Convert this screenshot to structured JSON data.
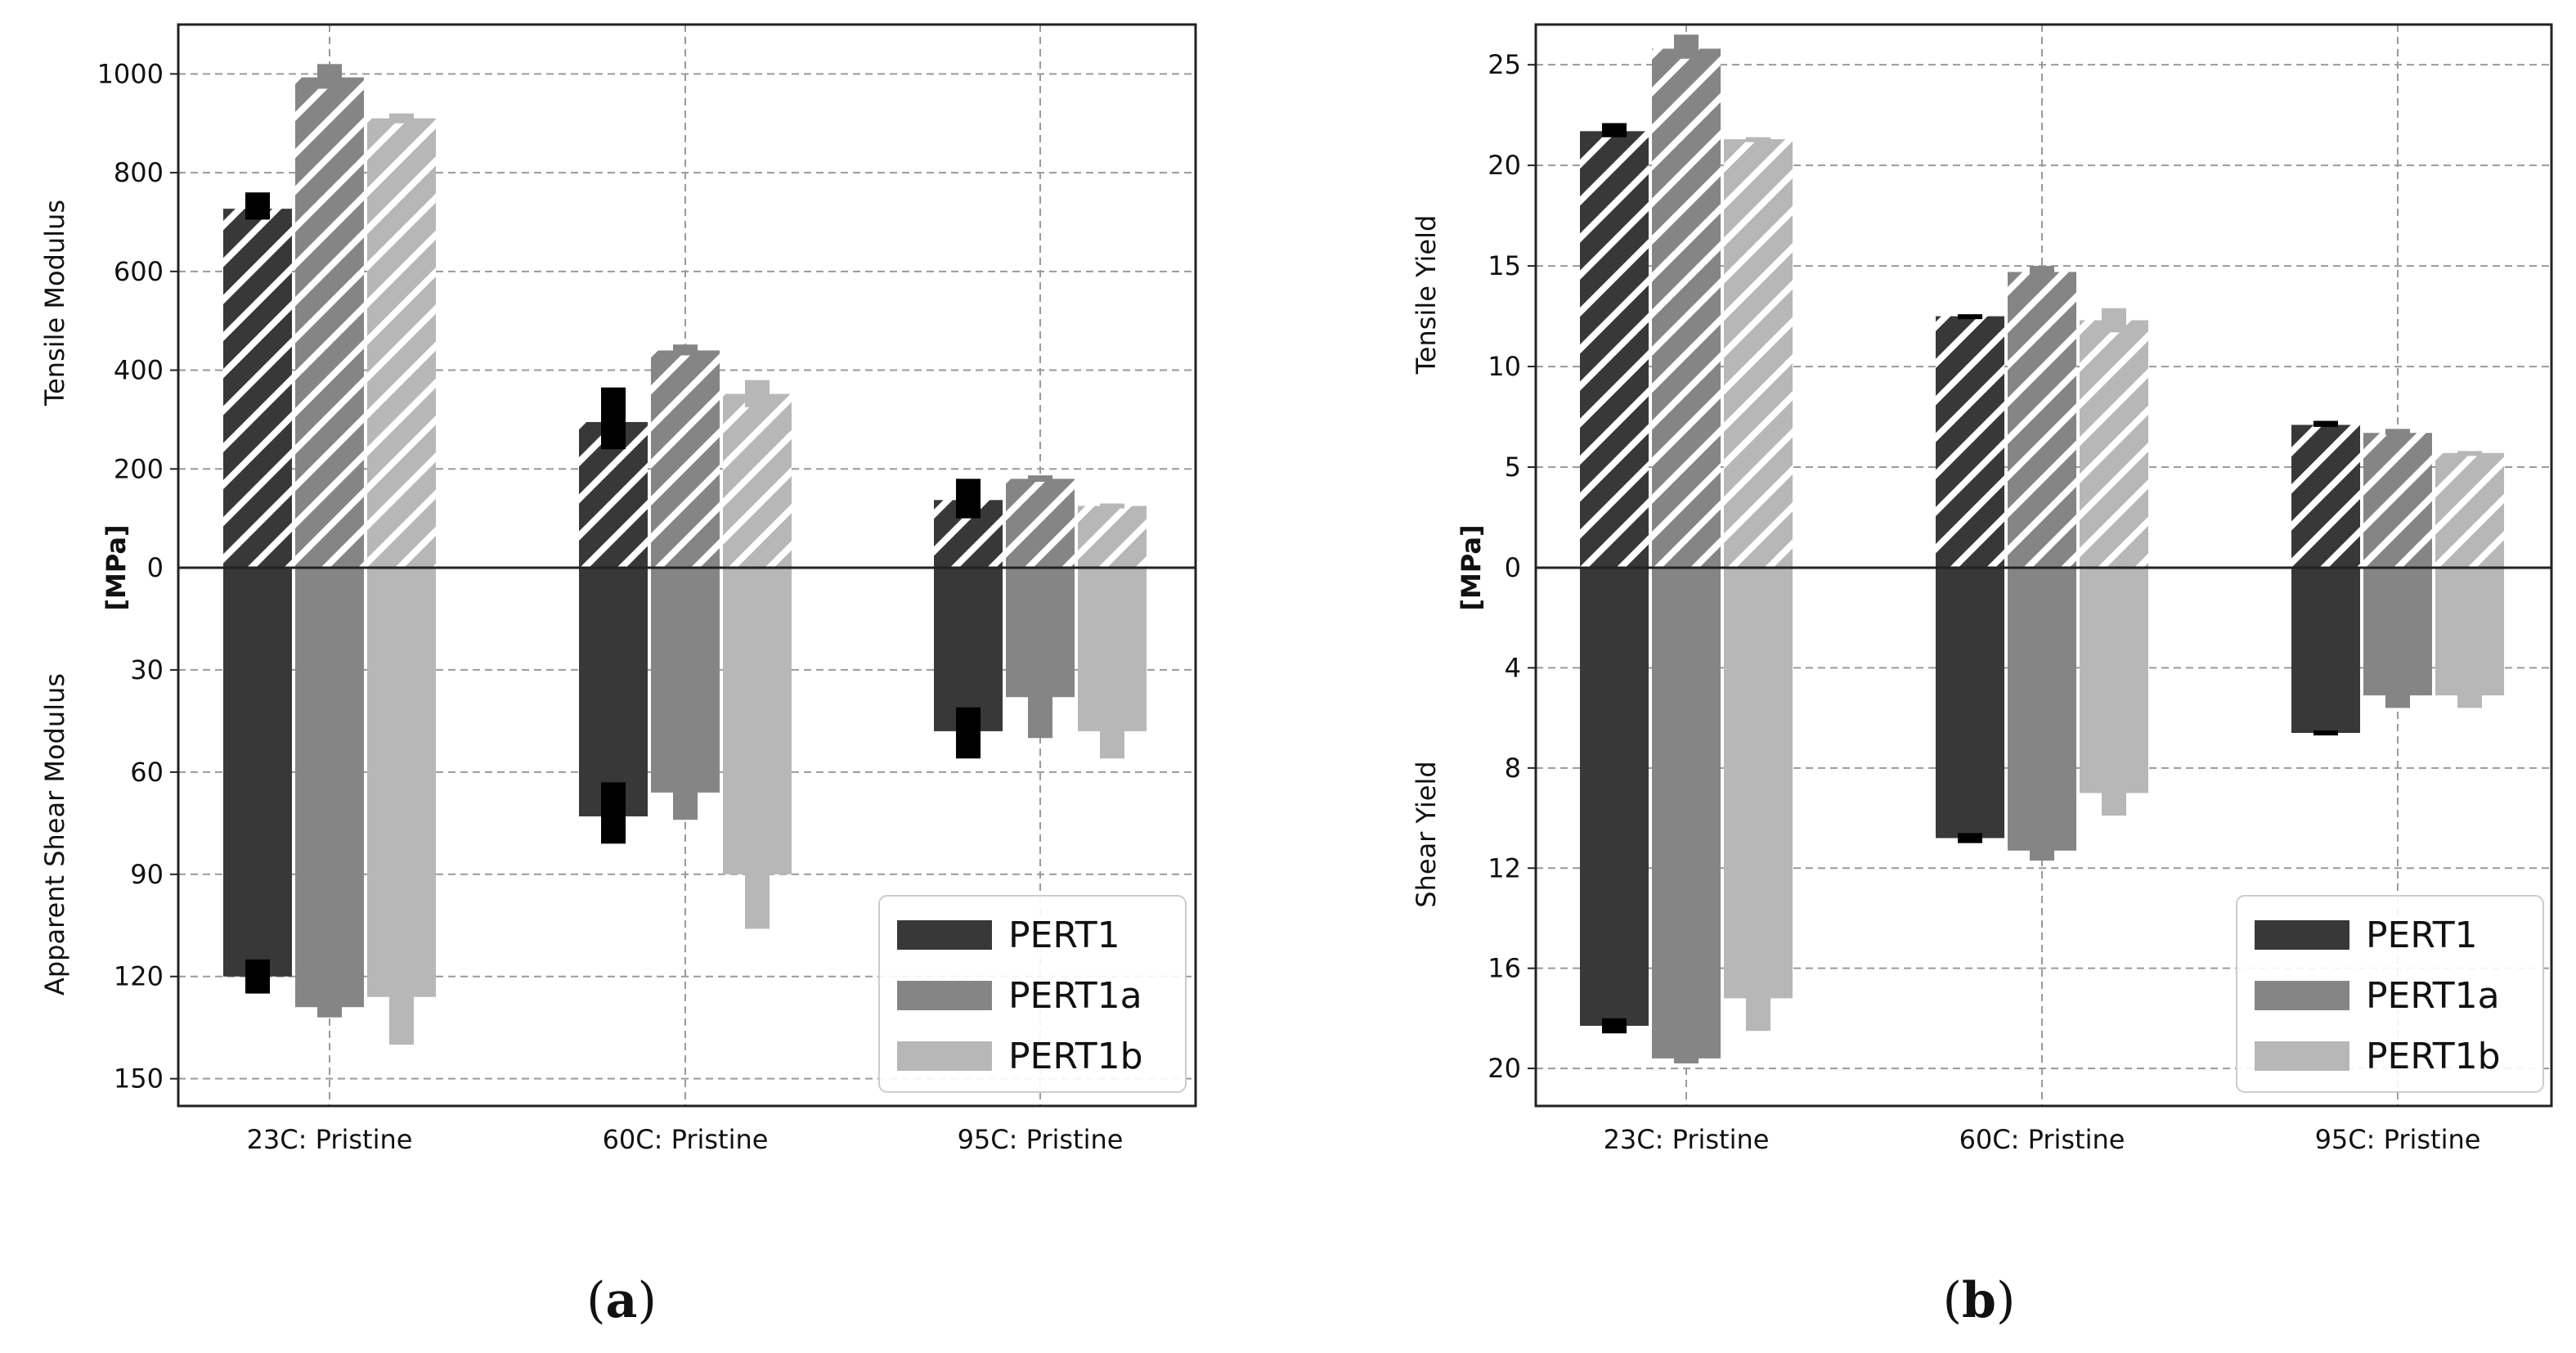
{
  "chart_data": [
    {
      "id": "a",
      "type": "bar",
      "caption": "a",
      "categories": [
        "23C: Pristine",
        "60C: Pristine",
        "95C: Pristine"
      ],
      "unit_label": "[MPa]",
      "ylabel_top": "Tensile Modulus",
      "ylabel_bottom": "Apparent Shear Modulus",
      "top_ticks": [
        0,
        200,
        400,
        600,
        800,
        1000
      ],
      "top_tick_labels": [
        "0",
        "200",
        "400",
        "600",
        "800",
        "1000"
      ],
      "bottom_ticks": [
        0,
        30,
        60,
        90,
        120,
        150
      ],
      "bottom_tick_labels": [
        "0",
        "30",
        "60",
        "90",
        "120",
        "150"
      ],
      "top_ylim": [
        0,
        1100
      ],
      "bottom_ylim": [
        0,
        158
      ],
      "series": [
        {
          "name": "PERT1",
          "color": "#383838",
          "top": [
            727,
            295,
            137
          ],
          "top_err": [
            [
              705,
              760
            ],
            [
              240,
              365
            ],
            [
              100,
              180
            ]
          ],
          "bottom": [
            120,
            73,
            48
          ],
          "bottom_err": [
            [
              115,
              125
            ],
            [
              63,
              81
            ],
            [
              41,
              56
            ]
          ]
        },
        {
          "name": "PERT1a",
          "color": "#858585",
          "top": [
            993,
            440,
            180
          ],
          "top_err": [
            [
              970,
              1020
            ],
            [
              430,
              452
            ],
            [
              174,
              187
            ]
          ],
          "bottom": [
            129,
            66,
            38
          ],
          "bottom_err": [
            [
              126,
              132
            ],
            [
              60,
              74
            ],
            [
              28,
              50
            ]
          ]
        },
        {
          "name": "PERT1b",
          "color": "#b7b7b7",
          "top": [
            910,
            352,
            125
          ],
          "top_err": [
            [
              900,
              920
            ],
            [
              325,
              380
            ],
            [
              120,
              130
            ]
          ],
          "bottom": [
            126,
            90,
            48
          ],
          "bottom_err": [
            [
              111,
              140
            ],
            [
              75,
              106
            ],
            [
              39,
              56
            ]
          ]
        }
      ],
      "legend": [
        "PERT1",
        "PERT1a",
        "PERT1b"
      ],
      "legend_position": "lower-right"
    },
    {
      "id": "b",
      "type": "bar",
      "caption": "b",
      "categories": [
        "23C: Pristine",
        "60C: Pristine",
        "95C: Pristine"
      ],
      "unit_label": "[MPa]",
      "ylabel_top": "Tensile Yield",
      "ylabel_bottom": "Shear Yield",
      "top_ticks": [
        0,
        5,
        10,
        15,
        20,
        25
      ],
      "top_tick_labels": [
        "0",
        "5",
        "10",
        "15",
        "20",
        "25"
      ],
      "bottom_ticks": [
        0,
        4,
        8,
        12,
        16,
        20
      ],
      "bottom_tick_labels": [
        "0",
        "4",
        "8",
        "12",
        "16",
        "20"
      ],
      "top_ylim": [
        0,
        27
      ],
      "bottom_ylim": [
        0,
        21.5
      ],
      "series": [
        {
          "name": "PERT1",
          "color": "#383838",
          "top": [
            21.7,
            12.5,
            7.1
          ],
          "top_err": [
            [
              21.4,
              22.1
            ],
            [
              12.4,
              12.6
            ],
            [
              7.0,
              7.3
            ]
          ],
          "bottom": [
            18.3,
            10.8,
            6.6
          ],
          "bottom_err": [
            [
              18.0,
              18.6
            ],
            [
              10.6,
              11.0
            ],
            [
              6.5,
              6.7
            ]
          ]
        },
        {
          "name": "PERT1a",
          "color": "#858585",
          "top": [
            25.8,
            14.7,
            6.7
          ],
          "top_err": [
            [
              25.3,
              26.5
            ],
            [
              14.4,
              15.0
            ],
            [
              6.6,
              6.9
            ]
          ],
          "bottom": [
            19.6,
            11.3,
            5.1
          ],
          "bottom_err": [
            [
              19.4,
              19.8
            ],
            [
              11.0,
              11.7
            ],
            [
              4.6,
              5.6
            ]
          ]
        },
        {
          "name": "PERT1b",
          "color": "#b7b7b7",
          "top": [
            21.3,
            12.3,
            5.7
          ],
          "top_err": [
            [
              21.2,
              21.4
            ],
            [
              11.7,
              12.9
            ],
            [
              5.6,
              5.8
            ]
          ],
          "bottom": [
            17.2,
            9.0,
            5.1
          ],
          "bottom_err": [
            [
              16.2,
              18.5
            ],
            [
              8.3,
              9.9
            ],
            [
              5.0,
              5.6
            ]
          ]
        }
      ],
      "legend": [
        "PERT1",
        "PERT1a",
        "PERT1b"
      ],
      "legend_position": "lower-right"
    }
  ]
}
